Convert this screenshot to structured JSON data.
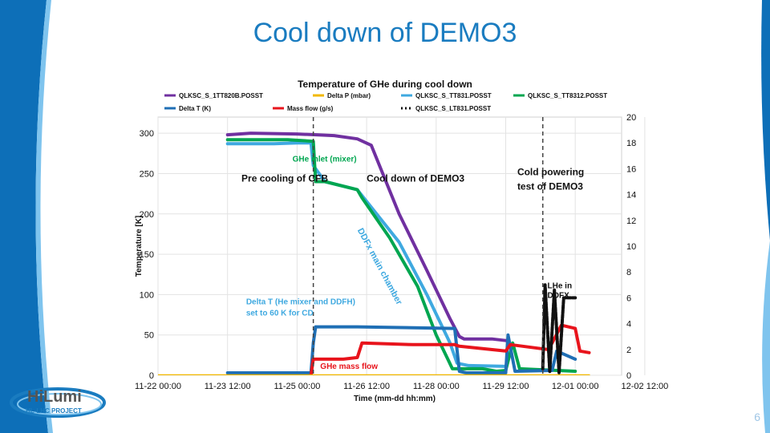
{
  "slide": {
    "title": "Cool down of DEMO3",
    "page_number": "6",
    "logo_text": "HiLumi",
    "logo_subtext": "HL-LHC PROJECT",
    "accent_color": "#1a7cc0"
  },
  "chart_data": {
    "type": "line",
    "title": "Temperature of GHe during cool down",
    "xlabel": "Time (mm-dd hh:mm)",
    "ylabel": "Temperature [K]",
    "y2label": "",
    "xlim_days": [
      0,
      10
    ],
    "x_tick_labels": [
      "11-22 00:00",
      "11-23 12:00",
      "11-25 00:00",
      "11-26 12:00",
      "11-28 00:00",
      "11-29 12:00",
      "12-01 00:00",
      "12-02 12:00"
    ],
    "ylim": [
      0,
      320
    ],
    "y_ticks": [
      0,
      50,
      100,
      150,
      200,
      250,
      300
    ],
    "y2lim": [
      0,
      20
    ],
    "y2_ticks": [
      0,
      2,
      4,
      6,
      8,
      10,
      12,
      14,
      16,
      18,
      20
    ],
    "legend_position": "top",
    "legend": [
      {
        "label": "QLKSC_S_1TT820B.POSST",
        "color": "#7030a0"
      },
      {
        "label": "Delta P (mbar)",
        "color": "#f2b800"
      },
      {
        "label": "QLKSC_S_TT831.POSST",
        "color": "#3fa9e0"
      },
      {
        "label": "QLKSC_S_TT8312.POSST",
        "color": "#00a650"
      },
      {
        "label": "Delta T (K)",
        "color": "#1f6fb5"
      },
      {
        "label": "Mass flow (g/s)",
        "color": "#e8141c"
      },
      {
        "label": "QLKSC_S_LT831.POSST",
        "color": "#111111"
      }
    ],
    "series": [
      {
        "name": "QLKSC_S_1TT820B.POSST",
        "axis": "left",
        "color": "#7030a0",
        "points": [
          [
            1.5,
            298
          ],
          [
            2.0,
            300
          ],
          [
            3.0,
            299
          ],
          [
            3.8,
            297
          ],
          [
            4.3,
            293
          ],
          [
            4.6,
            285
          ],
          [
            5.2,
            200
          ],
          [
            5.8,
            130
          ],
          [
            6.3,
            70
          ],
          [
            6.5,
            48
          ],
          [
            6.6,
            45
          ],
          [
            7.2,
            45
          ],
          [
            7.5,
            43
          ]
        ]
      },
      {
        "name": "QLKSC_S_TT831.POSST",
        "axis": "left",
        "color": "#3fa9e0",
        "points": [
          [
            1.5,
            287
          ],
          [
            2.5,
            287
          ],
          [
            3.0,
            288
          ],
          [
            3.3,
            288
          ],
          [
            3.35,
            260
          ],
          [
            3.6,
            240
          ],
          [
            4.3,
            230
          ],
          [
            5.2,
            165
          ],
          [
            5.8,
            100
          ],
          [
            6.3,
            40
          ],
          [
            6.45,
            15
          ],
          [
            6.7,
            12
          ],
          [
            7.5,
            11
          ]
        ]
      },
      {
        "name": "QLKSC_S_TT8312.POSST",
        "axis": "left",
        "color": "#00a650",
        "points": [
          [
            1.5,
            292
          ],
          [
            2.8,
            292
          ],
          [
            3.35,
            290
          ],
          [
            3.4,
            240
          ],
          [
            3.6,
            240
          ],
          [
            4.3,
            230
          ],
          [
            4.4,
            220
          ],
          [
            5.0,
            170
          ],
          [
            5.6,
            110
          ],
          [
            6.0,
            50
          ],
          [
            6.25,
            20
          ],
          [
            6.35,
            8
          ],
          [
            7.0,
            8
          ],
          [
            7.3,
            5
          ],
          [
            7.5,
            6
          ],
          [
            7.65,
            40
          ],
          [
            7.8,
            8
          ],
          [
            9.0,
            5
          ]
        ]
      },
      {
        "name": "Delta T (K)",
        "axis": "left",
        "color": "#1f6fb5",
        "points": [
          [
            1.5,
            3
          ],
          [
            3.3,
            3
          ],
          [
            3.35,
            40
          ],
          [
            3.4,
            60
          ],
          [
            4.3,
            60
          ],
          [
            6.4,
            58
          ],
          [
            6.5,
            5
          ],
          [
            6.65,
            3
          ],
          [
            7.5,
            3
          ],
          [
            7.55,
            50
          ],
          [
            7.7,
            5
          ],
          [
            8.5,
            6
          ],
          [
            8.6,
            30
          ],
          [
            9.0,
            20
          ]
        ]
      },
      {
        "name": "Mass flow (g/s)",
        "axis": "left",
        "color": "#e8141c",
        "points": [
          [
            3.3,
            0
          ],
          [
            3.35,
            20
          ],
          [
            4.0,
            20
          ],
          [
            4.3,
            22
          ],
          [
            4.4,
            40
          ],
          [
            5.5,
            38
          ],
          [
            6.4,
            38
          ],
          [
            6.5,
            36
          ],
          [
            7.5,
            30
          ],
          [
            7.6,
            38
          ],
          [
            8.4,
            32
          ],
          [
            8.5,
            40
          ],
          [
            8.7,
            62
          ],
          [
            9.0,
            58
          ],
          [
            9.1,
            30
          ],
          [
            9.3,
            28
          ]
        ]
      },
      {
        "name": "Delta P (mbar)",
        "axis": "left",
        "color": "#f2b800",
        "points": [
          [
            0,
            0
          ],
          [
            9.3,
            0
          ]
        ]
      },
      {
        "name": "QLKSC_S_LT831.POSST",
        "axis": "right",
        "color": "#111111",
        "points": [
          [
            8.3,
            0.5
          ],
          [
            8.35,
            7.0
          ],
          [
            8.45,
            0.3
          ],
          [
            8.55,
            6.6
          ],
          [
            8.65,
            0.2
          ],
          [
            8.75,
            6.0
          ],
          [
            9.0,
            6.0
          ]
        ]
      }
    ],
    "vlines_days": [
      3.35,
      8.3
    ],
    "annotations": [
      {
        "text": "GHe inlet  (mixer)",
        "x": 2.9,
        "y": 265,
        "color": "#00a650"
      },
      {
        "text": "Pre cooling of CFB",
        "x": 1.8,
        "y": 240,
        "color": "#111111"
      },
      {
        "text": "Cool down of DEMO3",
        "x": 4.5,
        "y": 240,
        "color": "#111111"
      },
      {
        "text": "Cold powering",
        "x": 7.75,
        "y": 248,
        "color": "#111111"
      },
      {
        "text": "test  of DEMO3",
        "x": 7.75,
        "y": 230,
        "color": "#111111"
      },
      {
        "text": "DDFx main chamber",
        "x": 4.3,
        "y": 180,
        "color": "#3fa9e0"
      },
      {
        "text": "Delta T (He mixer and DDFH)",
        "x": 1.9,
        "y": 88,
        "color": "#3fa9e0"
      },
      {
        "text": "set to 60 K for CD",
        "x": 1.9,
        "y": 74,
        "color": "#3fa9e0"
      },
      {
        "text": "LHe in",
        "x": 8.4,
        "y": 108,
        "color": "#111111"
      },
      {
        "text": "DDFX",
        "x": 8.4,
        "y": 96,
        "color": "#111111"
      },
      {
        "text": "GHe mass flow",
        "x": 3.5,
        "y": 8,
        "color": "#e8141c"
      }
    ]
  }
}
